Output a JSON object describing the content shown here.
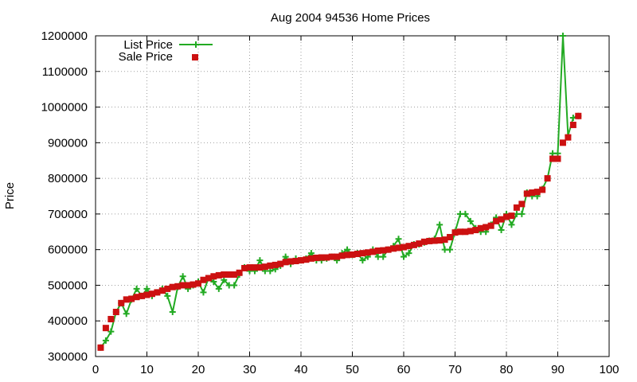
{
  "chart_data": {
    "type": "line",
    "title": "Aug 2004 94536 Home Prices",
    "xlabel": "",
    "ylabel": "Price",
    "xlim": [
      0,
      100
    ],
    "ylim": [
      300000,
      1200000
    ],
    "x_ticks": [
      "0",
      "10",
      "20",
      "30",
      "40",
      "50",
      "60",
      "70",
      "80",
      "90",
      "100"
    ],
    "y_ticks": [
      "300000",
      "400000",
      "500000",
      "600000",
      "700000",
      "800000",
      "900000",
      "1000000",
      "1100000",
      "1200000"
    ],
    "grid": true,
    "legend_position": "top-left",
    "series": [
      {
        "name": "List Price",
        "style": "line+points",
        "color": "#22aa22",
        "points": [
          [
            1,
            325000
          ],
          [
            2,
            345000
          ],
          [
            3,
            370000
          ],
          [
            4,
            425000
          ],
          [
            5,
            450000
          ],
          [
            6,
            420000
          ],
          [
            7,
            460000
          ],
          [
            8,
            490000
          ],
          [
            9,
            470000
          ],
          [
            10,
            490000
          ],
          [
            11,
            470000
          ],
          [
            12,
            480000
          ],
          [
            13,
            490000
          ],
          [
            14,
            470000
          ],
          [
            15,
            425000
          ],
          [
            16,
            495000
          ],
          [
            17,
            525000
          ],
          [
            18,
            490000
          ],
          [
            19,
            500000
          ],
          [
            20,
            510000
          ],
          [
            21,
            480000
          ],
          [
            22,
            520000
          ],
          [
            23,
            510000
          ],
          [
            24,
            490000
          ],
          [
            25,
            515000
          ],
          [
            26,
            500000
          ],
          [
            27,
            500000
          ],
          [
            28,
            530000
          ],
          [
            29,
            550000
          ],
          [
            30,
            540000
          ],
          [
            31,
            540000
          ],
          [
            32,
            570000
          ],
          [
            33,
            540000
          ],
          [
            34,
            540000
          ],
          [
            35,
            545000
          ],
          [
            36,
            555000
          ],
          [
            37,
            580000
          ],
          [
            38,
            560000
          ],
          [
            39,
            575000
          ],
          [
            40,
            570000
          ],
          [
            41,
            575000
          ],
          [
            42,
            590000
          ],
          [
            43,
            570000
          ],
          [
            44,
            570000
          ],
          [
            45,
            575000
          ],
          [
            46,
            580000
          ],
          [
            47,
            570000
          ],
          [
            48,
            590000
          ],
          [
            49,
            600000
          ],
          [
            50,
            585000
          ],
          [
            51,
            590000
          ],
          [
            52,
            570000
          ],
          [
            53,
            580000
          ],
          [
            54,
            600000
          ],
          [
            55,
            580000
          ],
          [
            56,
            580000
          ],
          [
            57,
            600000
          ],
          [
            58,
            610000
          ],
          [
            59,
            630000
          ],
          [
            60,
            580000
          ],
          [
            61,
            590000
          ],
          [
            62,
            615000
          ],
          [
            63,
            615000
          ],
          [
            64,
            620000
          ],
          [
            65,
            625000
          ],
          [
            66,
            630000
          ],
          [
            67,
            670000
          ],
          [
            68,
            600000
          ],
          [
            69,
            600000
          ],
          [
            70,
            650000
          ],
          [
            71,
            700000
          ],
          [
            72,
            700000
          ],
          [
            73,
            680000
          ],
          [
            74,
            660000
          ],
          [
            75,
            650000
          ],
          [
            76,
            650000
          ],
          [
            77,
            670000
          ],
          [
            78,
            690000
          ],
          [
            79,
            655000
          ],
          [
            80,
            700000
          ],
          [
            81,
            670000
          ],
          [
            82,
            700000
          ],
          [
            83,
            700000
          ],
          [
            84,
            760000
          ],
          [
            85,
            750000
          ],
          [
            86,
            750000
          ],
          [
            87,
            770000
          ],
          [
            88,
            800000
          ],
          [
            89,
            870000
          ],
          [
            90,
            870000
          ],
          [
            91,
            1200000
          ],
          [
            92,
            920000
          ],
          [
            93,
            970000
          ],
          [
            94,
            975000
          ]
        ]
      },
      {
        "name": "Sale Price",
        "style": "points",
        "color": "#cc1111",
        "points": [
          [
            1,
            325000
          ],
          [
            2,
            380000
          ],
          [
            3,
            405000
          ],
          [
            4,
            425000
          ],
          [
            5,
            450000
          ],
          [
            6,
            460000
          ],
          [
            7,
            462000
          ],
          [
            8,
            467000
          ],
          [
            9,
            470000
          ],
          [
            10,
            473000
          ],
          [
            11,
            476000
          ],
          [
            12,
            480000
          ],
          [
            13,
            485000
          ],
          [
            14,
            490000
          ],
          [
            15,
            495000
          ],
          [
            16,
            497000
          ],
          [
            17,
            500000
          ],
          [
            18,
            500000
          ],
          [
            19,
            502000
          ],
          [
            20,
            505000
          ],
          [
            21,
            515000
          ],
          [
            22,
            520000
          ],
          [
            23,
            525000
          ],
          [
            24,
            528000
          ],
          [
            25,
            530000
          ],
          [
            26,
            530000
          ],
          [
            27,
            530000
          ],
          [
            28,
            535000
          ],
          [
            29,
            548000
          ],
          [
            30,
            550000
          ],
          [
            31,
            550000
          ],
          [
            32,
            550000
          ],
          [
            33,
            552000
          ],
          [
            34,
            555000
          ],
          [
            35,
            557000
          ],
          [
            36,
            560000
          ],
          [
            37,
            565000
          ],
          [
            38,
            567000
          ],
          [
            39,
            568000
          ],
          [
            40,
            570000
          ],
          [
            41,
            572000
          ],
          [
            42,
            575000
          ],
          [
            43,
            577000
          ],
          [
            44,
            578000
          ],
          [
            45,
            578000
          ],
          [
            46,
            580000
          ],
          [
            47,
            580000
          ],
          [
            48,
            583000
          ],
          [
            49,
            585000
          ],
          [
            50,
            586000
          ],
          [
            51,
            588000
          ],
          [
            52,
            590000
          ],
          [
            53,
            592000
          ],
          [
            54,
            594000
          ],
          [
            55,
            597000
          ],
          [
            56,
            598000
          ],
          [
            57,
            600000
          ],
          [
            58,
            603000
          ],
          [
            59,
            605000
          ],
          [
            60,
            607000
          ],
          [
            61,
            610000
          ],
          [
            62,
            613000
          ],
          [
            63,
            617000
          ],
          [
            64,
            622000
          ],
          [
            65,
            624000
          ],
          [
            66,
            625000
          ],
          [
            67,
            626000
          ],
          [
            68,
            628000
          ],
          [
            69,
            635000
          ],
          [
            70,
            648000
          ],
          [
            71,
            650000
          ],
          [
            72,
            650000
          ],
          [
            73,
            652000
          ],
          [
            74,
            655000
          ],
          [
            75,
            660000
          ],
          [
            76,
            663000
          ],
          [
            77,
            667000
          ],
          [
            78,
            680000
          ],
          [
            79,
            685000
          ],
          [
            80,
            692000
          ],
          [
            81,
            695000
          ],
          [
            82,
            718000
          ],
          [
            83,
            728000
          ],
          [
            84,
            757000
          ],
          [
            85,
            760000
          ],
          [
            86,
            762000
          ],
          [
            87,
            768000
          ],
          [
            88,
            800000
          ],
          [
            89,
            855000
          ],
          [
            90,
            855000
          ],
          [
            91,
            900000
          ],
          [
            92,
            915000
          ],
          [
            93,
            950000
          ],
          [
            94,
            975000
          ]
        ]
      }
    ]
  }
}
